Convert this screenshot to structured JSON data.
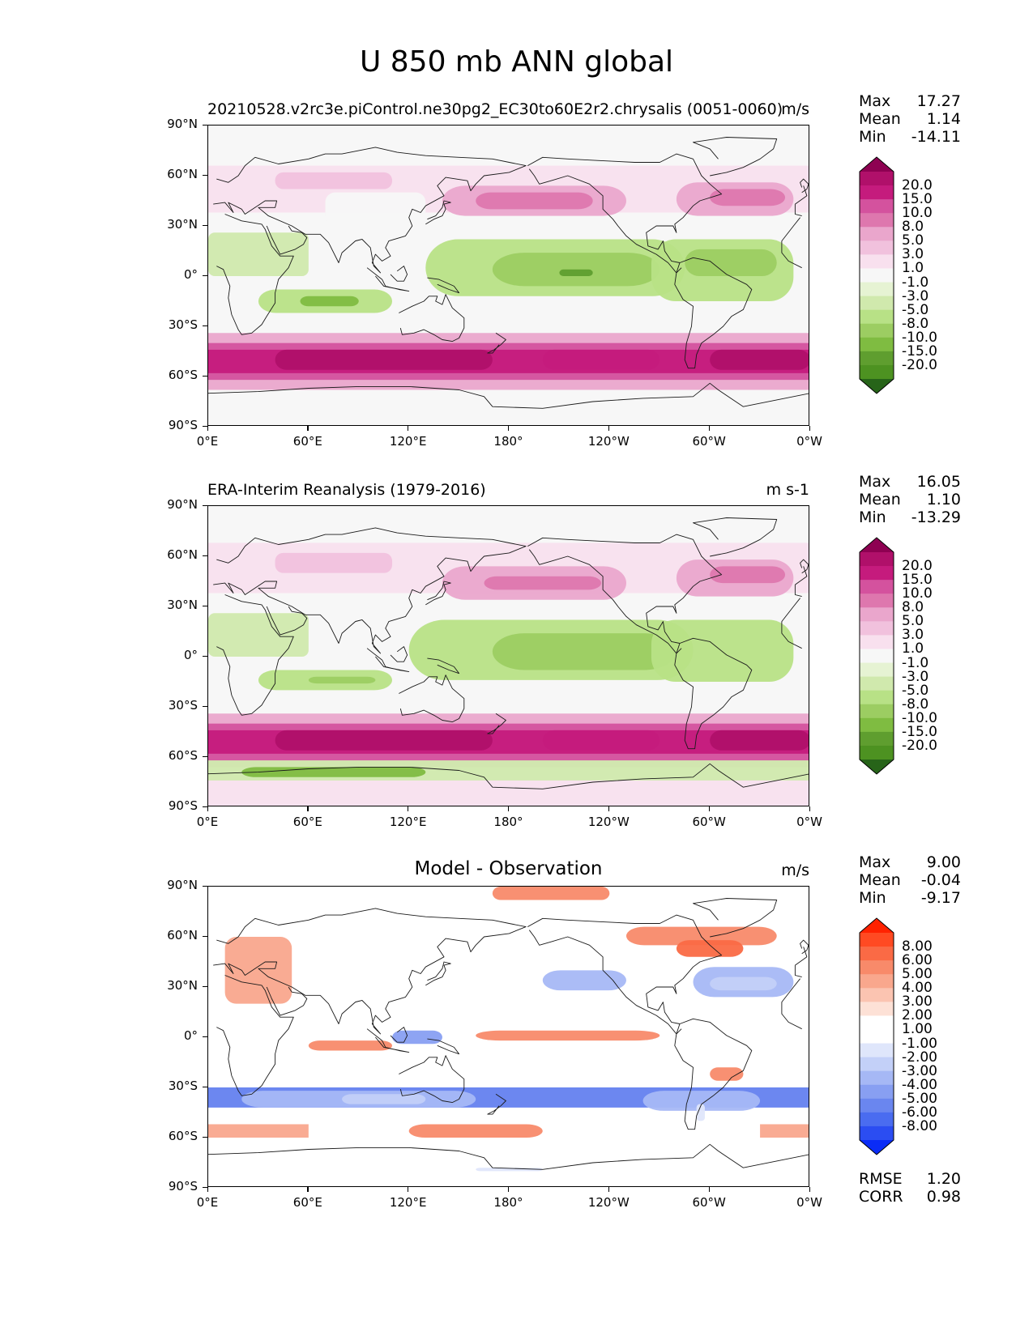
{
  "title": "U 850 mb ANN global",
  "lat_ticks": [
    "90°N",
    "60°N",
    "30°N",
    "0°",
    "30°S",
    "60°S",
    "90°S"
  ],
  "lon_ticks": [
    "0°E",
    "60°E",
    "120°E",
    "180°",
    "120°W",
    "60°W",
    "0°W"
  ],
  "panels": [
    {
      "title": "20210528.v2rc3e.piControl.ne30pg2_EC30to60E2r2.chrysalis (0051-0060)",
      "units": "m/s",
      "stats": [
        {
          "label": "Max",
          "value": "17.27"
        },
        {
          "label": "Mean",
          "value": "1.14"
        },
        {
          "label": "Min",
          "value": "-14.11"
        }
      ],
      "colorbar": {
        "labels": [
          "20.0",
          "15.0",
          "10.0",
          "8.0",
          "5.0",
          "3.0",
          "1.0",
          "-1.0",
          "-3.0",
          "-5.0",
          "-8.0",
          "-10.0",
          "-15.0",
          "-20.0"
        ],
        "colors": [
          "#8e0152",
          "#b0106a",
          "#c51b7d",
          "#d4529e",
          "#de77ae",
          "#eaa6cc",
          "#f1c1dd",
          "#f8e0ee",
          "#f7f7f7",
          "#e6f3d3",
          "#d0e9ad",
          "#b8e186",
          "#9ccd62",
          "#7fbc41",
          "#5f9e2f",
          "#4d9221",
          "#276419"
        ]
      }
    },
    {
      "title": "ERA-Interim Reanalysis (1979-2016)",
      "units": "m s-1",
      "stats": [
        {
          "label": "Max",
          "value": "16.05"
        },
        {
          "label": "Mean",
          "value": "1.10"
        },
        {
          "label": "Min",
          "value": "-13.29"
        }
      ],
      "colorbar": {
        "labels": [
          "20.0",
          "15.0",
          "10.0",
          "8.0",
          "5.0",
          "3.0",
          "1.0",
          "-1.0",
          "-3.0",
          "-5.0",
          "-8.0",
          "-10.0",
          "-15.0",
          "-20.0"
        ],
        "colors": [
          "#8e0152",
          "#b0106a",
          "#c51b7d",
          "#d4529e",
          "#de77ae",
          "#eaa6cc",
          "#f1c1dd",
          "#f8e0ee",
          "#f7f7f7",
          "#e6f3d3",
          "#d0e9ad",
          "#b8e186",
          "#9ccd62",
          "#7fbc41",
          "#5f9e2f",
          "#4d9221",
          "#276419"
        ]
      }
    },
    {
      "title": "Model - Observation",
      "units": "m/s",
      "stats": [
        {
          "label": "Max",
          "value": "9.00"
        },
        {
          "label": "Mean",
          "value": "-0.04"
        },
        {
          "label": "Min",
          "value": "-9.17"
        }
      ],
      "extra_stats": [
        {
          "label": "RMSE",
          "value": "1.20"
        },
        {
          "label": "CORR",
          "value": "0.98"
        }
      ],
      "colorbar": {
        "labels": [
          "8.00",
          "6.00",
          "5.00",
          "4.00",
          "3.00",
          "2.00",
          "1.00",
          "-1.00",
          "-2.00",
          "-3.00",
          "-4.00",
          "-5.00",
          "-6.00",
          "-8.00"
        ],
        "colors": [
          "#ff2200",
          "#ff4a22",
          "#fa6a45",
          "#f88a6a",
          "#f9a78d",
          "#fbc4b1",
          "#fde1d6",
          "#ffffff",
          "#ffffff",
          "#dfe6fb",
          "#c3d0f8",
          "#a6b8f5",
          "#889ff2",
          "#6a86ef",
          "#4a6cf0",
          "#2b4df2",
          "#0a2cf6"
        ]
      }
    }
  ]
}
